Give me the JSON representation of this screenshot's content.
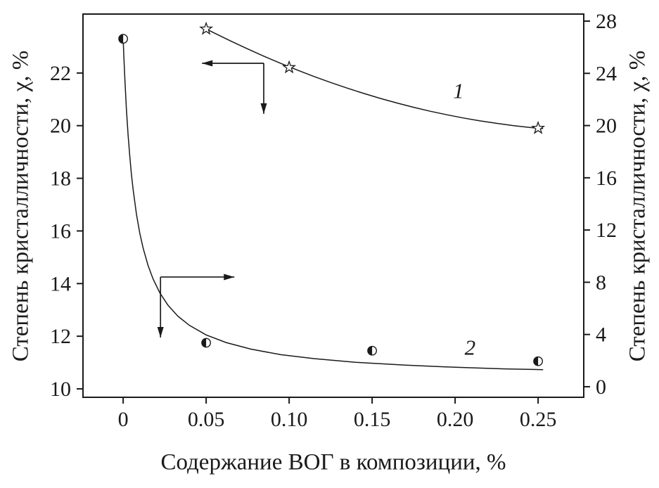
{
  "chart_data": {
    "type": "line",
    "title": "",
    "xlabel": "Содержание ВОГ в композиции, %",
    "ylabel_left": "Степень кристалличности, χ, %",
    "ylabel_right": "Степень кристалличности, χ, %",
    "grid": false,
    "xlim": [
      -0.0242,
      0.2775
    ],
    "x_ticks": [
      0,
      0.05,
      0.1,
      0.15,
      0.2,
      0.25
    ],
    "x_tick_labels": [
      "0",
      "0.05",
      "0.10",
      "0.15",
      "0.20",
      "0.25"
    ],
    "left_axis": {
      "lim": [
        9.68,
        24.24
      ],
      "ticks": [
        10,
        12,
        14,
        16,
        18,
        20,
        22
      ],
      "tick_labels": [
        "10",
        "12",
        "14",
        "16",
        "18",
        "20",
        "22"
      ]
    },
    "right_axis": {
      "lim": [
        -0.81,
        28.54
      ],
      "ticks": [
        0,
        4,
        8,
        12,
        16,
        20,
        24,
        28
      ],
      "tick_labels": [
        "0",
        "4",
        "8",
        "12",
        "16",
        "20",
        "24",
        "28"
      ]
    },
    "series": [
      {
        "name": "1",
        "axis": "right",
        "marker": "star",
        "points": [
          [
            0.05,
            27.4
          ],
          [
            0.1,
            24.45
          ],
          [
            0.25,
            19.8
          ]
        ],
        "curve": [
          [
            0.048,
            27.53
          ],
          [
            0.055,
            27.08
          ],
          [
            0.065,
            26.46
          ],
          [
            0.075,
            25.87
          ],
          [
            0.085,
            25.3
          ],
          [
            0.095,
            24.76
          ],
          [
            0.105,
            24.25
          ],
          [
            0.115,
            23.76
          ],
          [
            0.125,
            23.3
          ],
          [
            0.135,
            22.87
          ],
          [
            0.145,
            22.46
          ],
          [
            0.155,
            22.08
          ],
          [
            0.165,
            21.73
          ],
          [
            0.175,
            21.4
          ],
          [
            0.185,
            21.1
          ],
          [
            0.195,
            20.83
          ],
          [
            0.205,
            20.58
          ],
          [
            0.215,
            20.36
          ],
          [
            0.225,
            20.17
          ],
          [
            0.235,
            20.0
          ],
          [
            0.245,
            19.86
          ],
          [
            0.253,
            19.77
          ]
        ],
        "label": {
          "text": "1",
          "x": 0.202,
          "v": 22.1
        }
      },
      {
        "name": "2",
        "axis": "left",
        "marker": "half-circle",
        "points": [
          [
            0.0,
            23.3
          ],
          [
            0.05,
            11.75
          ],
          [
            0.15,
            11.45
          ],
          [
            0.25,
            11.05
          ]
        ],
        "curve": [
          [
            0.0,
            23.3
          ],
          [
            0.0005,
            22.5
          ],
          [
            0.001,
            21.79
          ],
          [
            0.0015,
            21.16
          ],
          [
            0.002,
            20.59
          ],
          [
            0.003,
            19.62
          ],
          [
            0.004,
            18.82
          ],
          [
            0.005,
            18.14
          ],
          [
            0.006,
            17.57
          ],
          [
            0.008,
            16.64
          ],
          [
            0.01,
            15.92
          ],
          [
            0.012,
            15.36
          ],
          [
            0.015,
            14.69
          ],
          [
            0.018,
            14.18
          ],
          [
            0.022,
            13.66
          ],
          [
            0.027,
            13.18
          ],
          [
            0.033,
            12.76
          ],
          [
            0.04,
            12.41
          ],
          [
            0.05,
            12.05
          ],
          [
            0.062,
            11.76
          ],
          [
            0.077,
            11.51
          ],
          [
            0.095,
            11.3
          ],
          [
            0.115,
            11.15
          ],
          [
            0.14,
            11.01
          ],
          [
            0.17,
            10.9
          ],
          [
            0.2,
            10.82
          ],
          [
            0.23,
            10.76
          ],
          [
            0.253,
            10.73
          ]
        ],
        "label": {
          "text": "2",
          "x": 0.209,
          "v": 11.3
        }
      }
    ],
    "arrows": [
      {
        "axis": "right",
        "corner": [
          0.0847,
          24.77
        ],
        "ends": [
          [
            0.0475,
            24.77
          ],
          [
            0.0847,
            20.9
          ]
        ]
      },
      {
        "axis": "left",
        "corner": [
          0.0225,
          14.25
        ],
        "ends": [
          [
            0.067,
            14.25
          ],
          [
            0.0225,
            11.95
          ]
        ]
      }
    ],
    "colors": {
      "ink": "#1a1a1a",
      "background": "#ffffff"
    }
  }
}
